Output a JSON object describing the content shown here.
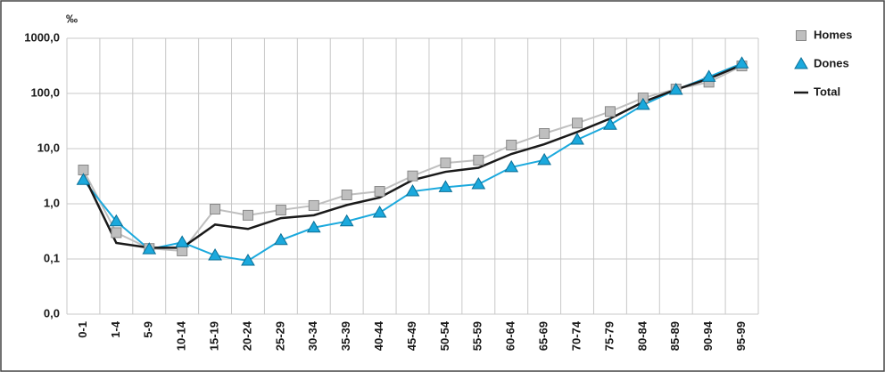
{
  "chart_data": {
    "type": "line",
    "y_label": "‰",
    "log_scale": true,
    "grid": true,
    "legend_position": "right",
    "categories": [
      "0-1",
      "1-4",
      "5-9",
      "10-14",
      "15-19",
      "20-24",
      "25-29",
      "30-34",
      "35-39",
      "40-44",
      "45-49",
      "50-54",
      "55-59",
      "60-64",
      "65-69",
      "70-74",
      "75-79",
      "80-84",
      "85-89",
      "90-94",
      "95-99"
    ],
    "ylim": [
      0.01,
      1000
    ],
    "yticks": [
      {
        "value": 0.01,
        "label": "0,0"
      },
      {
        "value": 0.1,
        "label": "0,1"
      },
      {
        "value": 1,
        "label": "1,0"
      },
      {
        "value": 10,
        "label": "10,0"
      },
      {
        "value": 100,
        "label": "100,0"
      },
      {
        "value": 1000,
        "label": "1000,0"
      }
    ],
    "series": [
      {
        "name": "Homes",
        "color": "#bfbfbf",
        "marker": "square",
        "values": [
          4.1,
          0.3,
          0.155,
          0.14,
          0.8,
          0.62,
          0.77,
          0.93,
          1.45,
          1.68,
          3.2,
          5.5,
          6.2,
          11.6,
          18.8,
          29,
          47,
          83,
          120,
          160,
          315
        ]
      },
      {
        "name": "Dones",
        "color": "#1ba9dd",
        "marker": "triangle",
        "values": [
          2.7,
          0.48,
          0.15,
          0.2,
          0.116,
          0.093,
          0.22,
          0.37,
          0.48,
          0.69,
          1.68,
          2.0,
          2.26,
          4.6,
          6.2,
          14.5,
          27,
          62,
          116,
          200,
          350
        ]
      },
      {
        "name": "Total",
        "color": "#1a1a1a",
        "marker": "none",
        "values": [
          3.4,
          0.195,
          0.16,
          0.16,
          0.42,
          0.35,
          0.55,
          0.62,
          0.95,
          1.3,
          2.7,
          3.8,
          4.5,
          8,
          12,
          20,
          35,
          70,
          118,
          185,
          330
        ]
      }
    ]
  }
}
